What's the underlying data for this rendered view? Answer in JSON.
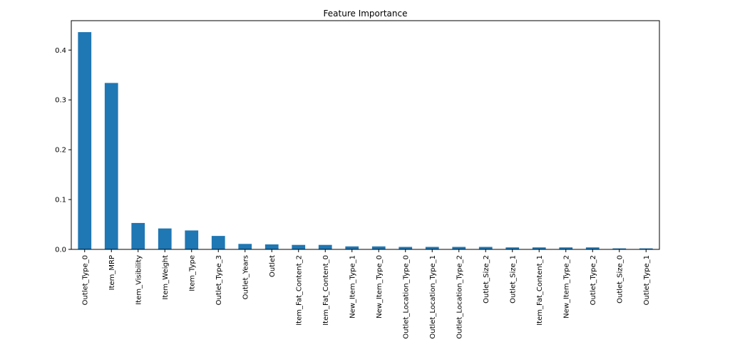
{
  "chart_data": {
    "type": "bar",
    "title": "Feature Importance",
    "xlabel": "",
    "ylabel": "",
    "categories": [
      "Outlet_Type_0",
      "Item_MRP",
      "Item_Visibility",
      "Item_Weight",
      "Item_Type",
      "Outlet_Type_3",
      "Outlet_Years",
      "Outlet",
      "Item_Fat_Content_2",
      "Item_Fat_Content_0",
      "New_Item_Type_1",
      "New_Item_Type_0",
      "Outlet_Location_Type_0",
      "Outlet_Location_Type_1",
      "Outlet_Location_Type_2",
      "Outlet_Size_2",
      "Outlet_Size_1",
      "Item_Fat_Content_1",
      "New_Item_Type_2",
      "Outlet_Type_2",
      "Outlet_Size_0",
      "Outlet_Type_1"
    ],
    "values": [
      0.436,
      0.334,
      0.053,
      0.042,
      0.038,
      0.027,
      0.011,
      0.01,
      0.009,
      0.009,
      0.006,
      0.006,
      0.005,
      0.005,
      0.005,
      0.005,
      0.004,
      0.004,
      0.004,
      0.004,
      0.002,
      0.002
    ],
    "ylim": [
      0,
      0.459
    ],
    "yticks": [
      0.0,
      0.1,
      0.2,
      0.3,
      0.4
    ],
    "ytick_labels": [
      "0.0",
      "0.1",
      "0.2",
      "0.3",
      "0.4"
    ],
    "bar_color": "#1f77b4",
    "grid": false,
    "legend": "none"
  }
}
